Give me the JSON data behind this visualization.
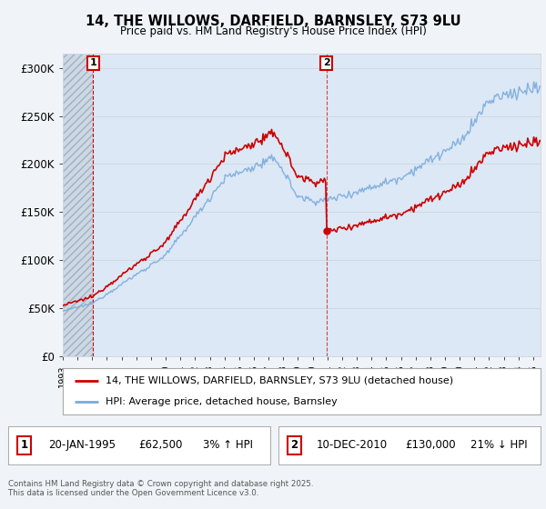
{
  "title1": "14, THE WILLOWS, DARFIELD, BARNSLEY, S73 9LU",
  "title2": "Price paid vs. HM Land Registry's House Price Index (HPI)",
  "ylabel_ticks": [
    "£0",
    "£50K",
    "£100K",
    "£150K",
    "£200K",
    "£250K",
    "£300K"
  ],
  "ylim": [
    0,
    315000
  ],
  "yticks": [
    0,
    50000,
    100000,
    150000,
    200000,
    250000,
    300000
  ],
  "sale1_year": 1995.055,
  "sale1_label": "20-JAN-1995",
  "sale1_price": 62500,
  "sale1_hpi_pct": "3% ↑ HPI",
  "sale2_year": 2010.94,
  "sale2_label": "10-DEC-2010",
  "sale2_price": 130000,
  "sale2_hpi_pct": "21% ↓ HPI",
  "legend_line1": "14, THE WILLOWS, DARFIELD, BARNSLEY, S73 9LU (detached house)",
  "legend_line2": "HPI: Average price, detached house, Barnsley",
  "footer": "Contains HM Land Registry data © Crown copyright and database right 2025.\nThis data is licensed under the Open Government Licence v3.0.",
  "line_color_property": "#cc0000",
  "line_color_hpi": "#7aaadd",
  "shade_color": "#dce8f5",
  "hatch_color": "#b8c8d8",
  "box_label_color": "#cc0000",
  "background_color": "#f0f4f8",
  "grid_color": "#d0d8e0",
  "xstart": 1993.0,
  "xend": 2025.5
}
